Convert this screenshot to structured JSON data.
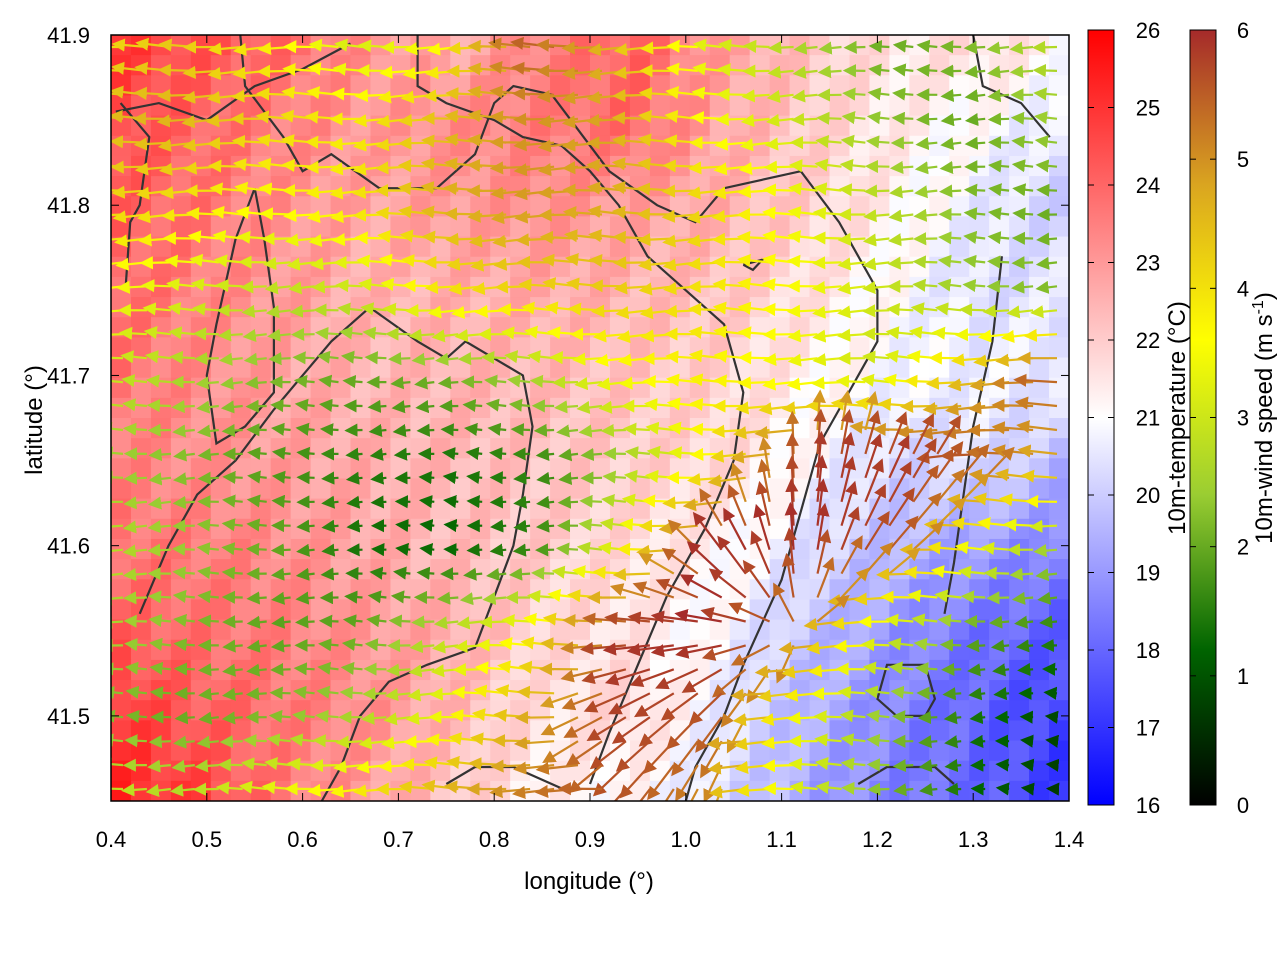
{
  "chart_data": {
    "type": "heatmap",
    "xlabel": "longitude (°)",
    "ylabel": "latitude (°)",
    "xlim": [
      0.4,
      1.4
    ],
    "ylim": [
      41.45,
      41.9
    ],
    "xticks": [
      "0.4",
      "0.5",
      "0.6",
      "0.7",
      "0.8",
      "0.9",
      "1.0",
      "1.1",
      "1.2",
      "1.3",
      "1.4"
    ],
    "yticks": [
      "41.5",
      "41.6",
      "41.7",
      "41.8",
      "41.9"
    ],
    "temperature_colorbar": {
      "label": "10m-temperature (°C)",
      "range": [
        16,
        26
      ],
      "ticks": [
        "16",
        "17",
        "18",
        "19",
        "20",
        "21",
        "22",
        "23",
        "24",
        "25",
        "26"
      ],
      "colors": [
        "#0000ff",
        "#ffffff",
        "#ff0000"
      ]
    },
    "wind_colorbar": {
      "label": "10m-wind speed (m s",
      "label_sup": "-1",
      "label_end": ")",
      "range": [
        0,
        6
      ],
      "ticks": [
        "0",
        "1",
        "2",
        "3",
        "4",
        "5",
        "6"
      ],
      "colors": [
        "#000000",
        "#006400",
        "#9acd32",
        "#ffff00",
        "#daa520",
        "#a52a2a"
      ]
    },
    "temperature_field": [
      [
        25.0,
        24.5,
        24.0,
        23.2,
        22.5,
        23.5,
        24.2,
        23.0,
        22.2,
        21.5,
        21.8,
        21.2
      ],
      [
        24.6,
        24.0,
        23.5,
        23.0,
        23.3,
        23.6,
        24.0,
        22.8,
        22.0,
        21.4,
        21.0,
        20.5
      ],
      [
        24.2,
        23.8,
        23.2,
        22.8,
        23.0,
        23.2,
        22.9,
        22.6,
        22.0,
        21.3,
        20.6,
        20.0
      ],
      [
        24.0,
        23.5,
        23.0,
        22.5,
        22.6,
        22.7,
        22.5,
        22.2,
        21.6,
        21.0,
        20.3,
        20.5
      ],
      [
        23.8,
        23.3,
        22.8,
        22.4,
        22.5,
        22.4,
        22.2,
        21.9,
        21.3,
        20.8,
        20.7,
        20.6
      ],
      [
        23.5,
        23.2,
        22.9,
        22.6,
        22.4,
        22.2,
        22.0,
        21.8,
        21.0,
        20.2,
        20.4,
        19.5
      ],
      [
        23.8,
        23.6,
        23.2,
        22.7,
        22.3,
        22.0,
        21.7,
        21.2,
        20.4,
        19.6,
        19.0,
        18.5
      ],
      [
        24.2,
        23.8,
        23.5,
        23.0,
        22.6,
        21.8,
        21.5,
        20.9,
        19.8,
        18.9,
        18.2,
        17.8
      ],
      [
        25.0,
        24.2,
        23.7,
        23.2,
        22.4,
        21.5,
        21.8,
        20.6,
        19.5,
        18.6,
        17.9,
        17.2
      ],
      [
        25.3,
        24.8,
        23.6,
        22.9,
        22.0,
        21.2,
        21.0,
        20.3,
        19.2,
        18.5,
        18.0,
        17.0
      ]
    ],
    "wind_field": [
      [
        4.0,
        4.3,
        3.8,
        3.0,
        3.5,
        5.6,
        4.5,
        3.2,
        2.6,
        2.0,
        2.2,
        2.8
      ],
      [
        4.5,
        4.6,
        4.2,
        3.8,
        4.4,
        5.0,
        4.8,
        3.6,
        3.0,
        2.3,
        2.0,
        2.5
      ],
      [
        4.2,
        4.0,
        3.6,
        3.9,
        4.6,
        4.9,
        4.7,
        4.2,
        3.5,
        2.8,
        2.2,
        2.0
      ],
      [
        3.6,
        3.2,
        2.8,
        3.0,
        3.9,
        4.2,
        4.3,
        4.0,
        3.6,
        3.0,
        2.4,
        2.2
      ],
      [
        3.0,
        2.6,
        2.2,
        2.0,
        2.1,
        2.6,
        3.5,
        3.8,
        3.4,
        3.0,
        4.4,
        5.6
      ],
      [
        2.5,
        2.2,
        1.8,
        1.5,
        1.4,
        1.6,
        2.4,
        3.6,
        5.8,
        5.9,
        5.7,
        4.6
      ],
      [
        2.8,
        2.4,
        2.0,
        1.3,
        1.2,
        1.6,
        3.2,
        5.9,
        6.0,
        5.6,
        3.6,
        2.4
      ],
      [
        2.6,
        2.2,
        1.9,
        2.0,
        2.8,
        3.6,
        5.9,
        6.0,
        5.2,
        3.2,
        2.0,
        1.5
      ],
      [
        2.2,
        2.0,
        2.2,
        2.6,
        3.4,
        4.6,
        5.8,
        5.5,
        3.6,
        2.4,
        1.4,
        0.8
      ],
      [
        3.0,
        2.8,
        3.4,
        4.0,
        4.6,
        5.2,
        5.6,
        4.8,
        3.2,
        2.2,
        1.2,
        0.6
      ]
    ],
    "wind_direction_note": "",
    "contours": [
      [
        [
          0.405,
          41.855
        ],
        [
          0.45,
          41.86
        ],
        [
          0.5,
          41.85
        ],
        [
          0.55,
          41.87
        ],
        [
          0.6,
          41.88
        ],
        [
          0.65,
          41.895
        ]
      ],
      [
        [
          0.535,
          41.9
        ],
        [
          0.54,
          41.87
        ],
        [
          0.58,
          41.84
        ],
        [
          0.6,
          41.82
        ],
        [
          0.63,
          41.83
        ],
        [
          0.68,
          41.81
        ],
        [
          0.74,
          41.81
        ],
        [
          0.78,
          41.83
        ],
        [
          0.8,
          41.86
        ],
        [
          0.82,
          41.87
        ],
        [
          0.86,
          41.865
        ],
        [
          0.92,
          41.82
        ],
        [
          0.97,
          41.8
        ],
        [
          1.01,
          41.79
        ],
        [
          1.04,
          41.81
        ],
        [
          1.12,
          41.82
        ],
        [
          1.16,
          41.79
        ],
        [
          1.2,
          41.75
        ],
        [
          1.2,
          41.72
        ],
        [
          1.17,
          41.69
        ],
        [
          1.14,
          41.66
        ],
        [
          1.12,
          41.62
        ],
        [
          1.1,
          41.58
        ],
        [
          1.06,
          41.53
        ],
        [
          1.04,
          41.5
        ],
        [
          1.01,
          41.47
        ],
        [
          1.0,
          41.45
        ]
      ],
      [
        [
          0.72,
          41.9
        ],
        [
          0.72,
          41.87
        ],
        [
          0.75,
          41.86
        ],
        [
          0.8,
          41.85
        ],
        [
          0.83,
          41.84
        ],
        [
          0.87,
          41.835
        ],
        [
          0.9,
          41.82
        ],
        [
          0.93,
          41.8
        ],
        [
          0.96,
          41.77
        ],
        [
          1.0,
          41.75
        ],
        [
          1.04,
          41.73
        ],
        [
          1.06,
          41.69
        ],
        [
          1.05,
          41.65
        ],
        [
          1.02,
          41.61
        ],
        [
          0.98,
          41.57
        ],
        [
          0.95,
          41.53
        ],
        [
          0.92,
          41.49
        ],
        [
          0.9,
          41.46
        ]
      ],
      [
        [
          0.415,
          41.75
        ],
        [
          0.42,
          41.79
        ],
        [
          0.43,
          41.8
        ],
        [
          0.44,
          41.84
        ],
        [
          0.41,
          41.86
        ]
      ],
      [
        [
          0.55,
          41.81
        ],
        [
          0.53,
          41.78
        ],
        [
          0.51,
          41.73
        ],
        [
          0.5,
          41.7
        ],
        [
          0.51,
          41.66
        ],
        [
          0.54,
          41.67
        ],
        [
          0.57,
          41.69
        ],
        [
          0.57,
          41.74
        ],
        [
          0.56,
          41.78
        ],
        [
          0.55,
          41.81
        ]
      ],
      [
        [
          0.43,
          41.56
        ],
        [
          0.46,
          41.6
        ],
        [
          0.49,
          41.63
        ],
        [
          0.53,
          41.65
        ],
        [
          0.57,
          41.68
        ],
        [
          0.6,
          41.7
        ],
        [
          0.63,
          41.72
        ],
        [
          0.67,
          41.74
        ],
        [
          0.72,
          41.72
        ],
        [
          0.75,
          41.71
        ],
        [
          0.77,
          41.72
        ],
        [
          0.8,
          41.71
        ],
        [
          0.83,
          41.7
        ],
        [
          0.84,
          41.67
        ],
        [
          0.83,
          41.63
        ],
        [
          0.82,
          41.6
        ],
        [
          0.8,
          41.57
        ],
        [
          0.78,
          41.54
        ],
        [
          0.73,
          41.53
        ],
        [
          0.69,
          41.52
        ],
        [
          0.66,
          41.5
        ],
        [
          0.64,
          41.47
        ],
        [
          0.62,
          41.45
        ]
      ],
      [
        [
          0.75,
          41.46
        ],
        [
          0.78,
          41.47
        ],
        [
          0.82,
          41.47
        ],
        [
          0.86,
          41.46
        ],
        [
          0.88,
          41.455
        ]
      ],
      [
        [
          1.18,
          41.46
        ],
        [
          1.21,
          41.47
        ],
        [
          1.26,
          41.47
        ],
        [
          1.28,
          41.46
        ]
      ],
      [
        [
          1.25,
          41.5
        ],
        [
          1.22,
          41.5
        ],
        [
          1.2,
          41.51
        ],
        [
          1.21,
          41.53
        ],
        [
          1.25,
          41.53
        ],
        [
          1.26,
          41.51
        ],
        [
          1.25,
          41.5
        ]
      ],
      [
        [
          1.3,
          41.9
        ],
        [
          1.31,
          41.87
        ],
        [
          1.35,
          41.86
        ],
        [
          1.38,
          41.84
        ]
      ],
      [
        [
          1.33,
          41.77
        ],
        [
          1.32,
          41.72
        ],
        [
          1.3,
          41.67
        ],
        [
          1.29,
          41.63
        ],
        [
          1.28,
          41.59
        ],
        [
          1.27,
          41.56
        ]
      ],
      [
        [
          1.06,
          41.765
        ],
        [
          1.08,
          41.768
        ],
        [
          1.07,
          41.762
        ],
        [
          1.06,
          41.765
        ]
      ]
    ]
  }
}
